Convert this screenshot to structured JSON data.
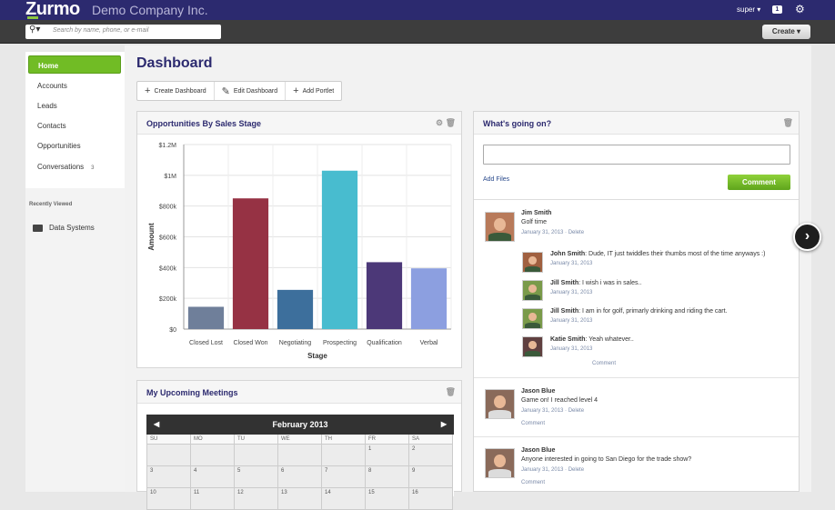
{
  "brand": {
    "logo": "Zurmo",
    "company": "Demo Company Inc."
  },
  "topbar": {
    "user": "super ▾",
    "notifications": "1"
  },
  "search": {
    "placeholder": "Search by name, phone, or e-mail"
  },
  "create_label": "Create ▾",
  "sidebar": {
    "items": [
      {
        "label": "Home"
      },
      {
        "label": "Accounts"
      },
      {
        "label": "Leads"
      },
      {
        "label": "Contacts"
      },
      {
        "label": "Opportunities"
      },
      {
        "label": "Conversations",
        "count": "3"
      }
    ],
    "recent_label": "Recently Viewed",
    "recent_item": "Data Systems"
  },
  "dashboard": {
    "title": "Dashboard",
    "buttons": [
      "Create Dashboard",
      "Edit Dashboard",
      "Add Portlet"
    ]
  },
  "opps_portlet": {
    "title": "Opportunities By Sales Stage"
  },
  "chart_data": {
    "type": "bar",
    "categories": [
      "Closed Lost",
      "Closed Won",
      "Negotiating",
      "Prospecting",
      "Qualification",
      "Verbal"
    ],
    "values": [
      145000,
      850000,
      255000,
      1030000,
      435000,
      395000
    ],
    "colors": [
      "#6f7f9a",
      "#963244",
      "#3d6f9c",
      "#48bccf",
      "#4c3878",
      "#8c9fe0"
    ],
    "xlabel": "Stage",
    "ylabel": "Amount",
    "ylim": [
      0,
      1200000
    ],
    "yticks": [
      "$0",
      "$200k",
      "$400k",
      "$600k",
      "$800k",
      "$1M",
      "$1.2M"
    ],
    "grid": true
  },
  "meetings_portlet": {
    "title": "My Upcoming Meetings",
    "month": "February 2013",
    "days": [
      "SU",
      "MO",
      "TU",
      "WE",
      "TH",
      "FR",
      "SA"
    ],
    "dates": [
      "",
      "",
      "",
      "",
      "",
      "1",
      "2",
      "3",
      "4",
      "5",
      "6",
      "7",
      "8",
      "9",
      "10",
      "11",
      "12",
      "13",
      "14",
      "15",
      "16"
    ]
  },
  "feed_portlet": {
    "title": "What's going on?",
    "add_files": "Add Files",
    "comment_button": "Comment",
    "posts": [
      {
        "name": "Jim Smith",
        "text": "Golf time",
        "date": "January 31, 2013",
        "delete": "Delete"
      },
      {
        "name": "Jason Blue",
        "text": "Game on! I reached level 4",
        "date": "January 31, 2013",
        "delete": "Delete",
        "comment": "Comment"
      },
      {
        "name": "Jason Blue",
        "text": "Anyone interested in going to San Diego for the trade show?",
        "date": "January 31, 2013",
        "delete": "Delete",
        "comment": "Comment"
      }
    ],
    "replies": [
      {
        "name": "John Smith",
        "text": ": Dude, IT just twiddles their thumbs most of the time anyways :)",
        "date": "January 31, 2013"
      },
      {
        "name": "Jill Smith",
        "text": ": I wish i was in sales..",
        "date": "January 31, 2013"
      },
      {
        "name": "Jill Smith",
        "text": ": I am in for golf, primarly drinking and riding the cart.",
        "date": "January 31, 2013"
      },
      {
        "name": "Katie Smith",
        "text": ": Yeah whatever..",
        "date": "January 31, 2013"
      }
    ],
    "reply_comment": "Comment"
  }
}
